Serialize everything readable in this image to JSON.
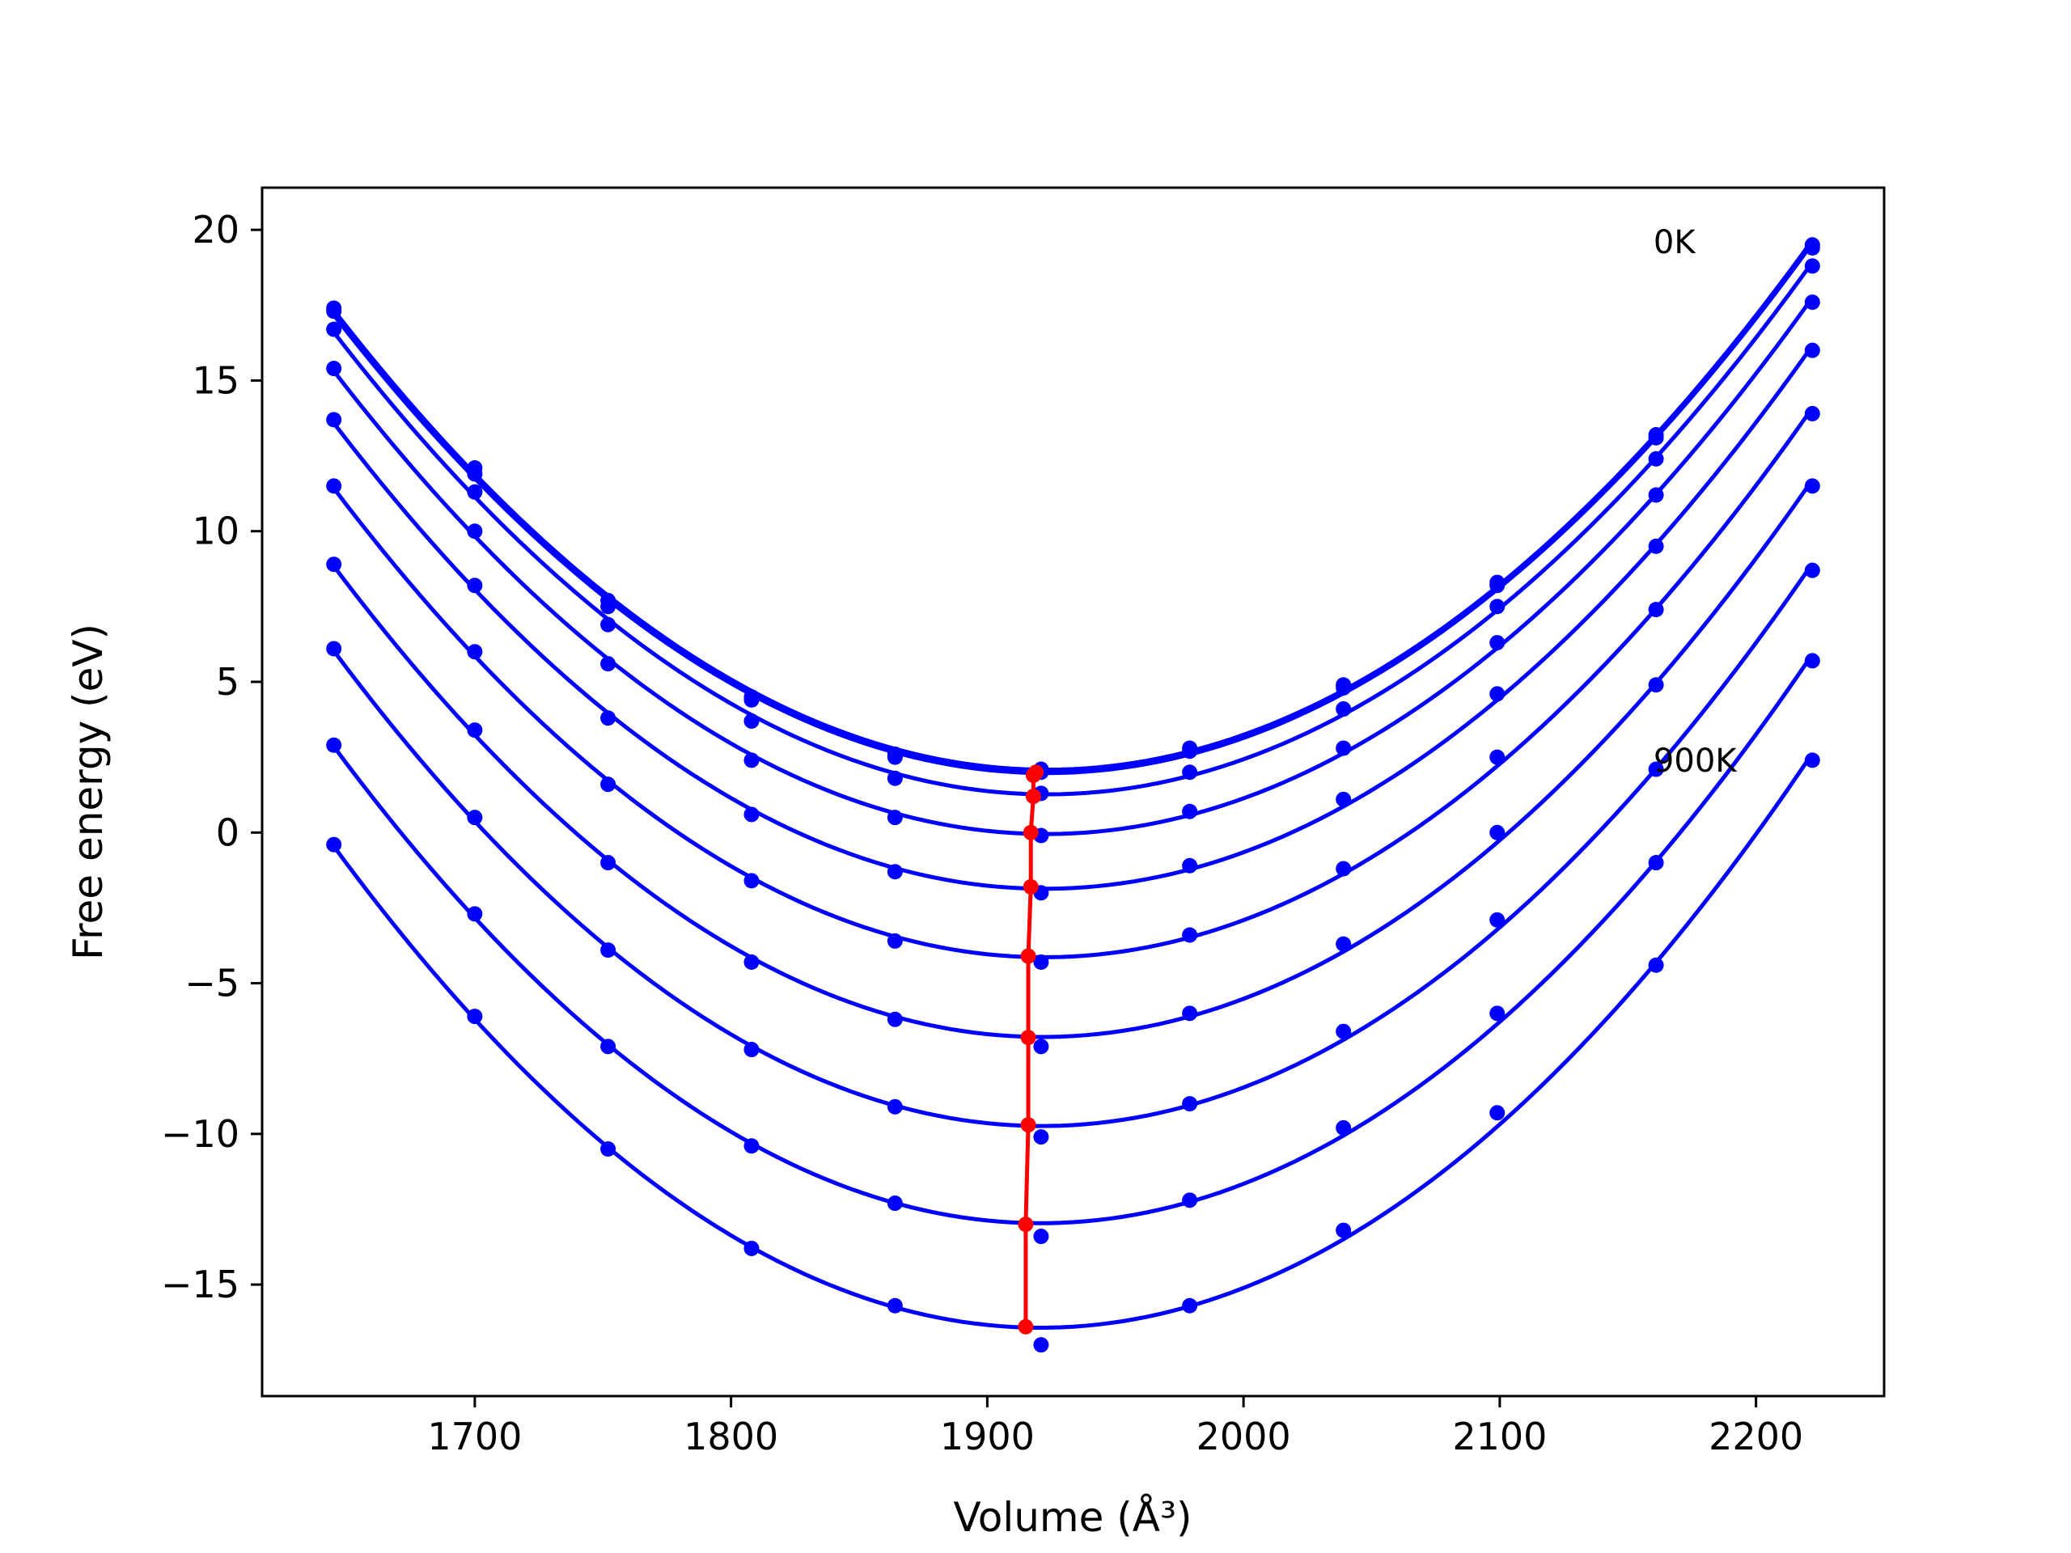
{
  "chart_data": {
    "type": "line",
    "xlabel": "Volume (Å³)",
    "ylabel": "Free energy (eV)",
    "xlim": [
      1617,
      2250
    ],
    "ylim": [
      -18.7,
      21.4
    ],
    "xticks": [
      1700,
      1800,
      1900,
      2000,
      2100,
      2200
    ],
    "yticks": [
      -15,
      -10,
      -5,
      0,
      5,
      10,
      15,
      20
    ],
    "grid": false,
    "annotations": [
      {
        "text": "0K",
        "x": 2160,
        "y": 19.6
      },
      {
        "text": "900K",
        "x": 2160,
        "y": 2.4
      }
    ],
    "curve_color": "#0000ff",
    "min_line_color": "#ff0000",
    "volumes": [
      1645,
      1700,
      1752,
      1808,
      1864,
      1921,
      1979,
      2039,
      2099,
      2161,
      2222
    ],
    "series": [
      {
        "values": [
          17.4,
          12.1,
          7.7,
          4.5,
          2.6,
          2.1,
          2.8,
          4.9,
          8.3,
          13.2,
          19.5
        ],
        "fit_min": {
          "x": 1919,
          "y": 2.0
        }
      },
      {
        "values": [
          17.3,
          11.9,
          7.5,
          4.4,
          2.5,
          2.0,
          2.7,
          4.8,
          8.2,
          13.1,
          19.4
        ],
        "fit_min": {
          "x": 1918,
          "y": 1.9
        }
      },
      {
        "values": [
          16.7,
          11.3,
          6.9,
          3.7,
          1.8,
          1.3,
          2.0,
          4.1,
          7.5,
          12.4,
          18.8
        ],
        "fit_min": {
          "x": 1918,
          "y": 1.2
        }
      },
      {
        "values": [
          15.4,
          10.0,
          5.6,
          2.4,
          0.5,
          -0.1,
          0.7,
          2.8,
          6.3,
          11.2,
          17.6
        ],
        "fit_min": {
          "x": 1917,
          "y": 0.0
        }
      },
      {
        "values": [
          13.7,
          8.2,
          3.8,
          0.6,
          -1.3,
          -2.0,
          -1.1,
          1.1,
          4.6,
          9.5,
          16.0
        ],
        "fit_min": {
          "x": 1917,
          "y": -1.8
        }
      },
      {
        "values": [
          11.5,
          6.0,
          1.6,
          -1.6,
          -3.6,
          -4.3,
          -3.4,
          -1.2,
          2.5,
          7.4,
          13.9
        ],
        "fit_min": {
          "x": 1916,
          "y": -4.1
        }
      },
      {
        "values": [
          8.9,
          3.4,
          -1.0,
          -4.3,
          -6.2,
          -7.1,
          -6.0,
          -3.7,
          0.0,
          4.9,
          11.5
        ],
        "fit_min": {
          "x": 1916,
          "y": -6.8
        }
      },
      {
        "values": [
          6.1,
          0.5,
          -3.9,
          -7.2,
          -9.1,
          -10.1,
          -9.0,
          -6.6,
          -2.9,
          2.1,
          8.7
        ],
        "fit_min": {
          "x": 1916,
          "y": -9.7
        }
      },
      {
        "values": [
          2.9,
          -2.7,
          -7.1,
          -10.4,
          -12.3,
          -13.4,
          -12.2,
          -9.8,
          -6.0,
          -1.0,
          5.7
        ],
        "fit_min": {
          "x": 1915,
          "y": -13.0
        }
      },
      {
        "values": [
          -0.4,
          -6.1,
          -10.5,
          -13.8,
          -15.7,
          -17.0,
          -15.7,
          -13.2,
          -9.3,
          -4.4,
          2.4
        ],
        "fit_min": {
          "x": 1915,
          "y": -16.4
        }
      }
    ]
  }
}
